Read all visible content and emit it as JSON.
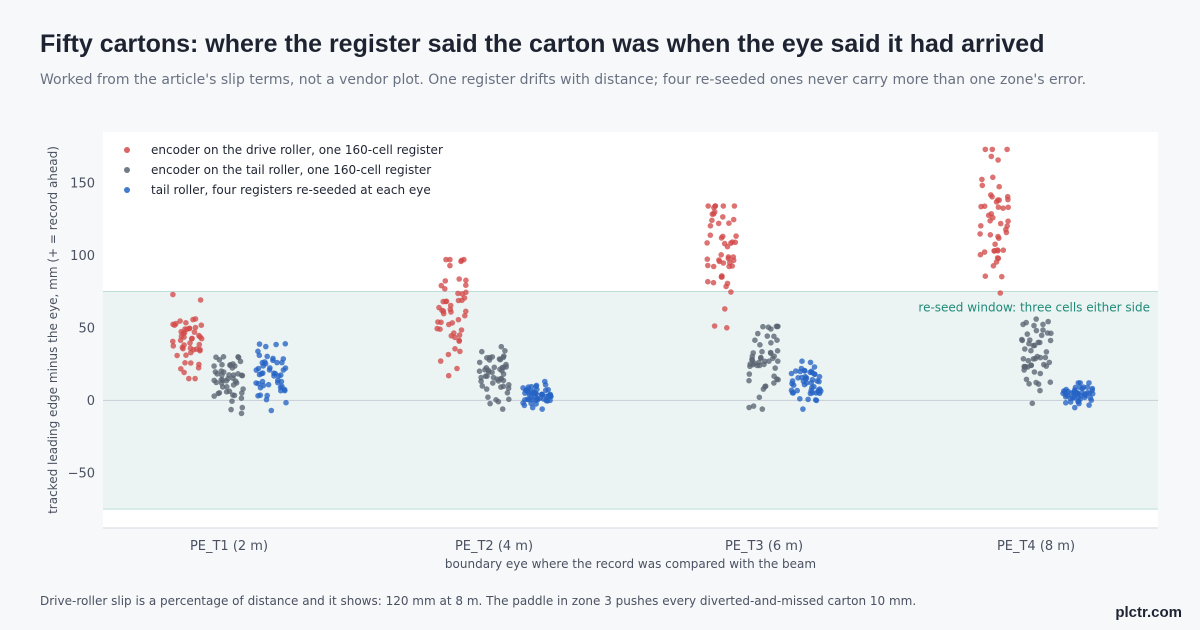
{
  "header": {
    "title": "Fifty cartons: where the register said the carton was when the eye said it had arrived",
    "subtitle": "Worked from the article's slip terms, not a vendor plot. One register drifts with distance; four re-seeded ones never carry more than one zone's error."
  },
  "footnote": "Drive-roller slip is a percentage of distance and it shows: 120 mm at 8 m. The paddle in zone 3 pushes every diverted-and-missed carton 10 mm.",
  "brand": "plctr.com",
  "chart_data": {
    "type": "scatter",
    "xlabel": "boundary eye where the record was compared with the beam",
    "ylabel": "tracked leading edge minus the eye, mm (+ = record ahead)",
    "categories": [
      "PE_T1 (2 m)",
      "PE_T2 (4 m)",
      "PE_T3 (6 m)",
      "PE_T4 (8 m)"
    ],
    "yticks": [
      -50,
      0,
      50,
      100,
      150
    ],
    "ylim": [
      -88,
      185
    ],
    "grid": false,
    "legend_position": "top-left",
    "band": {
      "from": -75,
      "to": 75,
      "label": "re-seed window: three cells either side",
      "color": "#1f8a78"
    },
    "points_per_group": 50,
    "series": [
      {
        "name": "encoder on the drive roller, one 160-cell register",
        "color": "#d24a4a",
        "groups": [
          {
            "center": 40,
            "min": 15,
            "max": 73
          },
          {
            "center": 63,
            "min": 17,
            "max": 97
          },
          {
            "center": 102,
            "min": 50,
            "max": 134
          },
          {
            "center": 130,
            "min": 74,
            "max": 173
          }
        ]
      },
      {
        "name": "encoder on the tail roller, one 160-cell register",
        "color": "#5a6472",
        "groups": [
          {
            "center": 15,
            "min": -9,
            "max": 30
          },
          {
            "center": 18,
            "min": -6,
            "max": 37
          },
          {
            "center": 30,
            "min": -6,
            "max": 51
          },
          {
            "center": 32,
            "min": -2,
            "max": 56
          }
        ]
      },
      {
        "name": "tail roller, four registers re-seeded at each eye",
        "color": "#2563c4",
        "groups": [
          {
            "center": 18,
            "min": -7,
            "max": 39
          },
          {
            "center": 3,
            "min": -6,
            "max": 13
          },
          {
            "center": 10,
            "min": -6,
            "max": 27
          },
          {
            "center": 4,
            "min": -5,
            "max": 12
          }
        ]
      }
    ]
  }
}
